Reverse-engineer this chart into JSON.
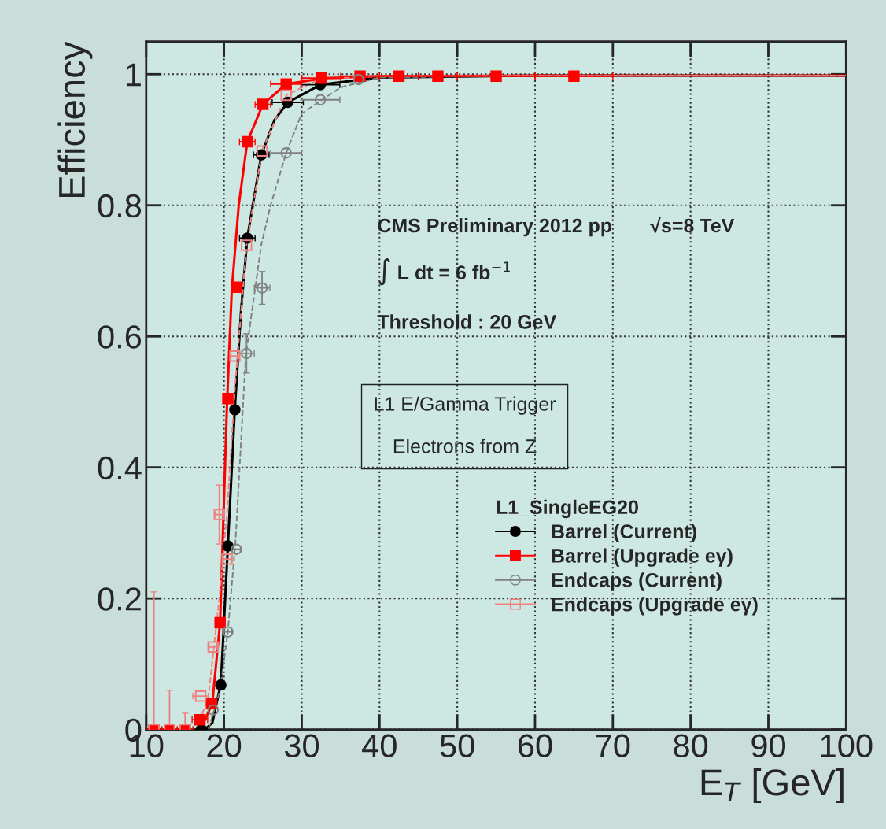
{
  "chart_data": {
    "type": "scatter",
    "xlabel": "E$_{T}$ [GeV]",
    "ylabel": "Efficiency",
    "xlim": [
      10,
      100
    ],
    "ylim": [
      0,
      1.05
    ],
    "xticks": [
      10,
      20,
      30,
      40,
      50,
      60,
      70,
      80,
      90,
      100
    ],
    "yticks": [
      0,
      0.2,
      0.4,
      0.6,
      0.8,
      1
    ],
    "grid": true,
    "legend": "right",
    "legend_title": "L1_SingleEG20",
    "annotations": [
      "CMS Preliminary 2012 pp",
      "√s=8 TeV",
      "∫ L dt = 6 fb$^{−1}$",
      "Threshold : 20 GeV",
      "L1 E/Gamma Trigger\n\nElectrons from Z"
    ],
    "series": [
      {
        "type": "line",
        "line_style": "solid",
        "marker": "none",
        "color": "#000000",
        "x": [
          17.5,
          18.5,
          19.6,
          20.5,
          21.4,
          22.2,
          23,
          24.8,
          26.5,
          28.2,
          32.4,
          40,
          60,
          100
        ],
        "values": [
          0,
          0.01,
          0.07,
          0.28,
          0.49,
          0.64,
          0.75,
          0.877,
          0.93,
          0.957,
          0.984,
          0.995,
          0.998,
          0.998
        ]
      },
      {
        "type": "line",
        "line_style": "solid",
        "marker": "none",
        "color": "#ff0000",
        "x": [
          17,
          18.5,
          19.5,
          20.4,
          21.0,
          21.9,
          23,
          25,
          28,
          33,
          40,
          60,
          100
        ],
        "values": [
          0,
          0.04,
          0.163,
          0.5,
          0.67,
          0.8,
          0.897,
          0.954,
          0.985,
          0.994,
          0.997,
          0.998,
          0.998
        ]
      },
      {
        "type": "line",
        "line_style": "dashed",
        "marker": "none",
        "color": "#808080",
        "x": [
          18,
          19.5,
          20.5,
          21.5,
          22.8,
          24.8,
          26,
          28,
          30,
          35,
          40,
          60,
          100
        ],
        "values": [
          0,
          0.06,
          0.15,
          0.29,
          0.57,
          0.74,
          0.8,
          0.88,
          0.94,
          0.98,
          0.995,
          0.998,
          0.998
        ]
      },
      {
        "type": "line",
        "line_style": "dashed",
        "marker": "none",
        "color": "#f08080",
        "x": [
          16.5,
          18,
          19.4,
          20.4,
          21.4,
          22.9,
          24.9,
          28,
          32.4,
          40,
          60,
          100
        ],
        "values": [
          0,
          0.05,
          0.2,
          0.33,
          0.52,
          0.739,
          0.883,
          0.968,
          0.993,
          0.997,
          0.998,
          0.998
        ]
      },
      {
        "name": "Barrel (Current)",
        "marker": "circle",
        "color": "#000000",
        "x": [
          17.1,
          19.6,
          20.5,
          21.4,
          23,
          24.8,
          28.2,
          32.4
        ],
        "values": [
          0,
          0.068,
          0.28,
          0.488,
          0.75,
          0.877,
          0.957,
          0.984
        ],
        "xerrors": [
          1,
          0.5,
          0.5,
          0.5,
          1,
          1,
          2,
          2.5
        ]
      },
      {
        "name": "Barrel (Upgrade eγ)",
        "marker": "square",
        "color": "#ff0000",
        "x": [
          11,
          13,
          15,
          16.9,
          18.4,
          19.5,
          20.5,
          21.6,
          23,
          25,
          28,
          32.5,
          37.5,
          42.5,
          47.5,
          55,
          65
        ],
        "values": [
          0,
          0,
          0,
          0.015,
          0.04,
          0.163,
          0.505,
          0.675,
          0.897,
          0.954,
          0.985,
          0.994,
          0.997,
          0.997,
          0.997,
          0.997,
          0.997
        ],
        "xerrors": [
          1,
          1,
          1,
          1,
          0.5,
          0.5,
          0.5,
          0.5,
          1,
          1,
          2,
          2.5,
          2.5,
          2.5,
          2.5,
          5,
          5
        ]
      },
      {
        "name": "Endcaps (Current)",
        "marker": "circle_open",
        "color": "#808080",
        "x": [
          18.6,
          20.5,
          21.6,
          22.9,
          24.9,
          28,
          32.4,
          37.3
        ],
        "values": [
          0.03,
          0.149,
          0.275,
          0.574,
          0.674,
          0.88,
          0.961,
          0.992
        ],
        "xerrors": [
          null,
          0.5,
          0.5,
          1,
          1,
          2,
          2.5,
          null
        ],
        "errors": [
          null,
          null,
          null,
          0.03,
          0.025,
          null,
          null,
          null
        ]
      },
      {
        "name": "Endcaps (Upgrade eγ)",
        "marker": "square_open",
        "color": "#f08080",
        "x": [
          11,
          13,
          15,
          17,
          18.6,
          19.4,
          20.4,
          21.4,
          22.9,
          24.9,
          28
        ],
        "values": [
          0,
          0,
          0,
          0.051,
          0.126,
          0.328,
          0.26,
          0.57,
          0.739,
          0.883,
          0.968
        ],
        "xerrors": [
          null,
          null,
          null,
          1,
          0.5,
          0.5,
          0.5,
          0.5,
          null,
          null,
          null
        ],
        "errors": [
          [
            0,
            0.21
          ],
          [
            0,
            0.06
          ],
          [
            0,
            0.025
          ],
          null,
          null,
          0.045,
          null,
          null,
          null,
          null,
          null
        ]
      }
    ]
  }
}
